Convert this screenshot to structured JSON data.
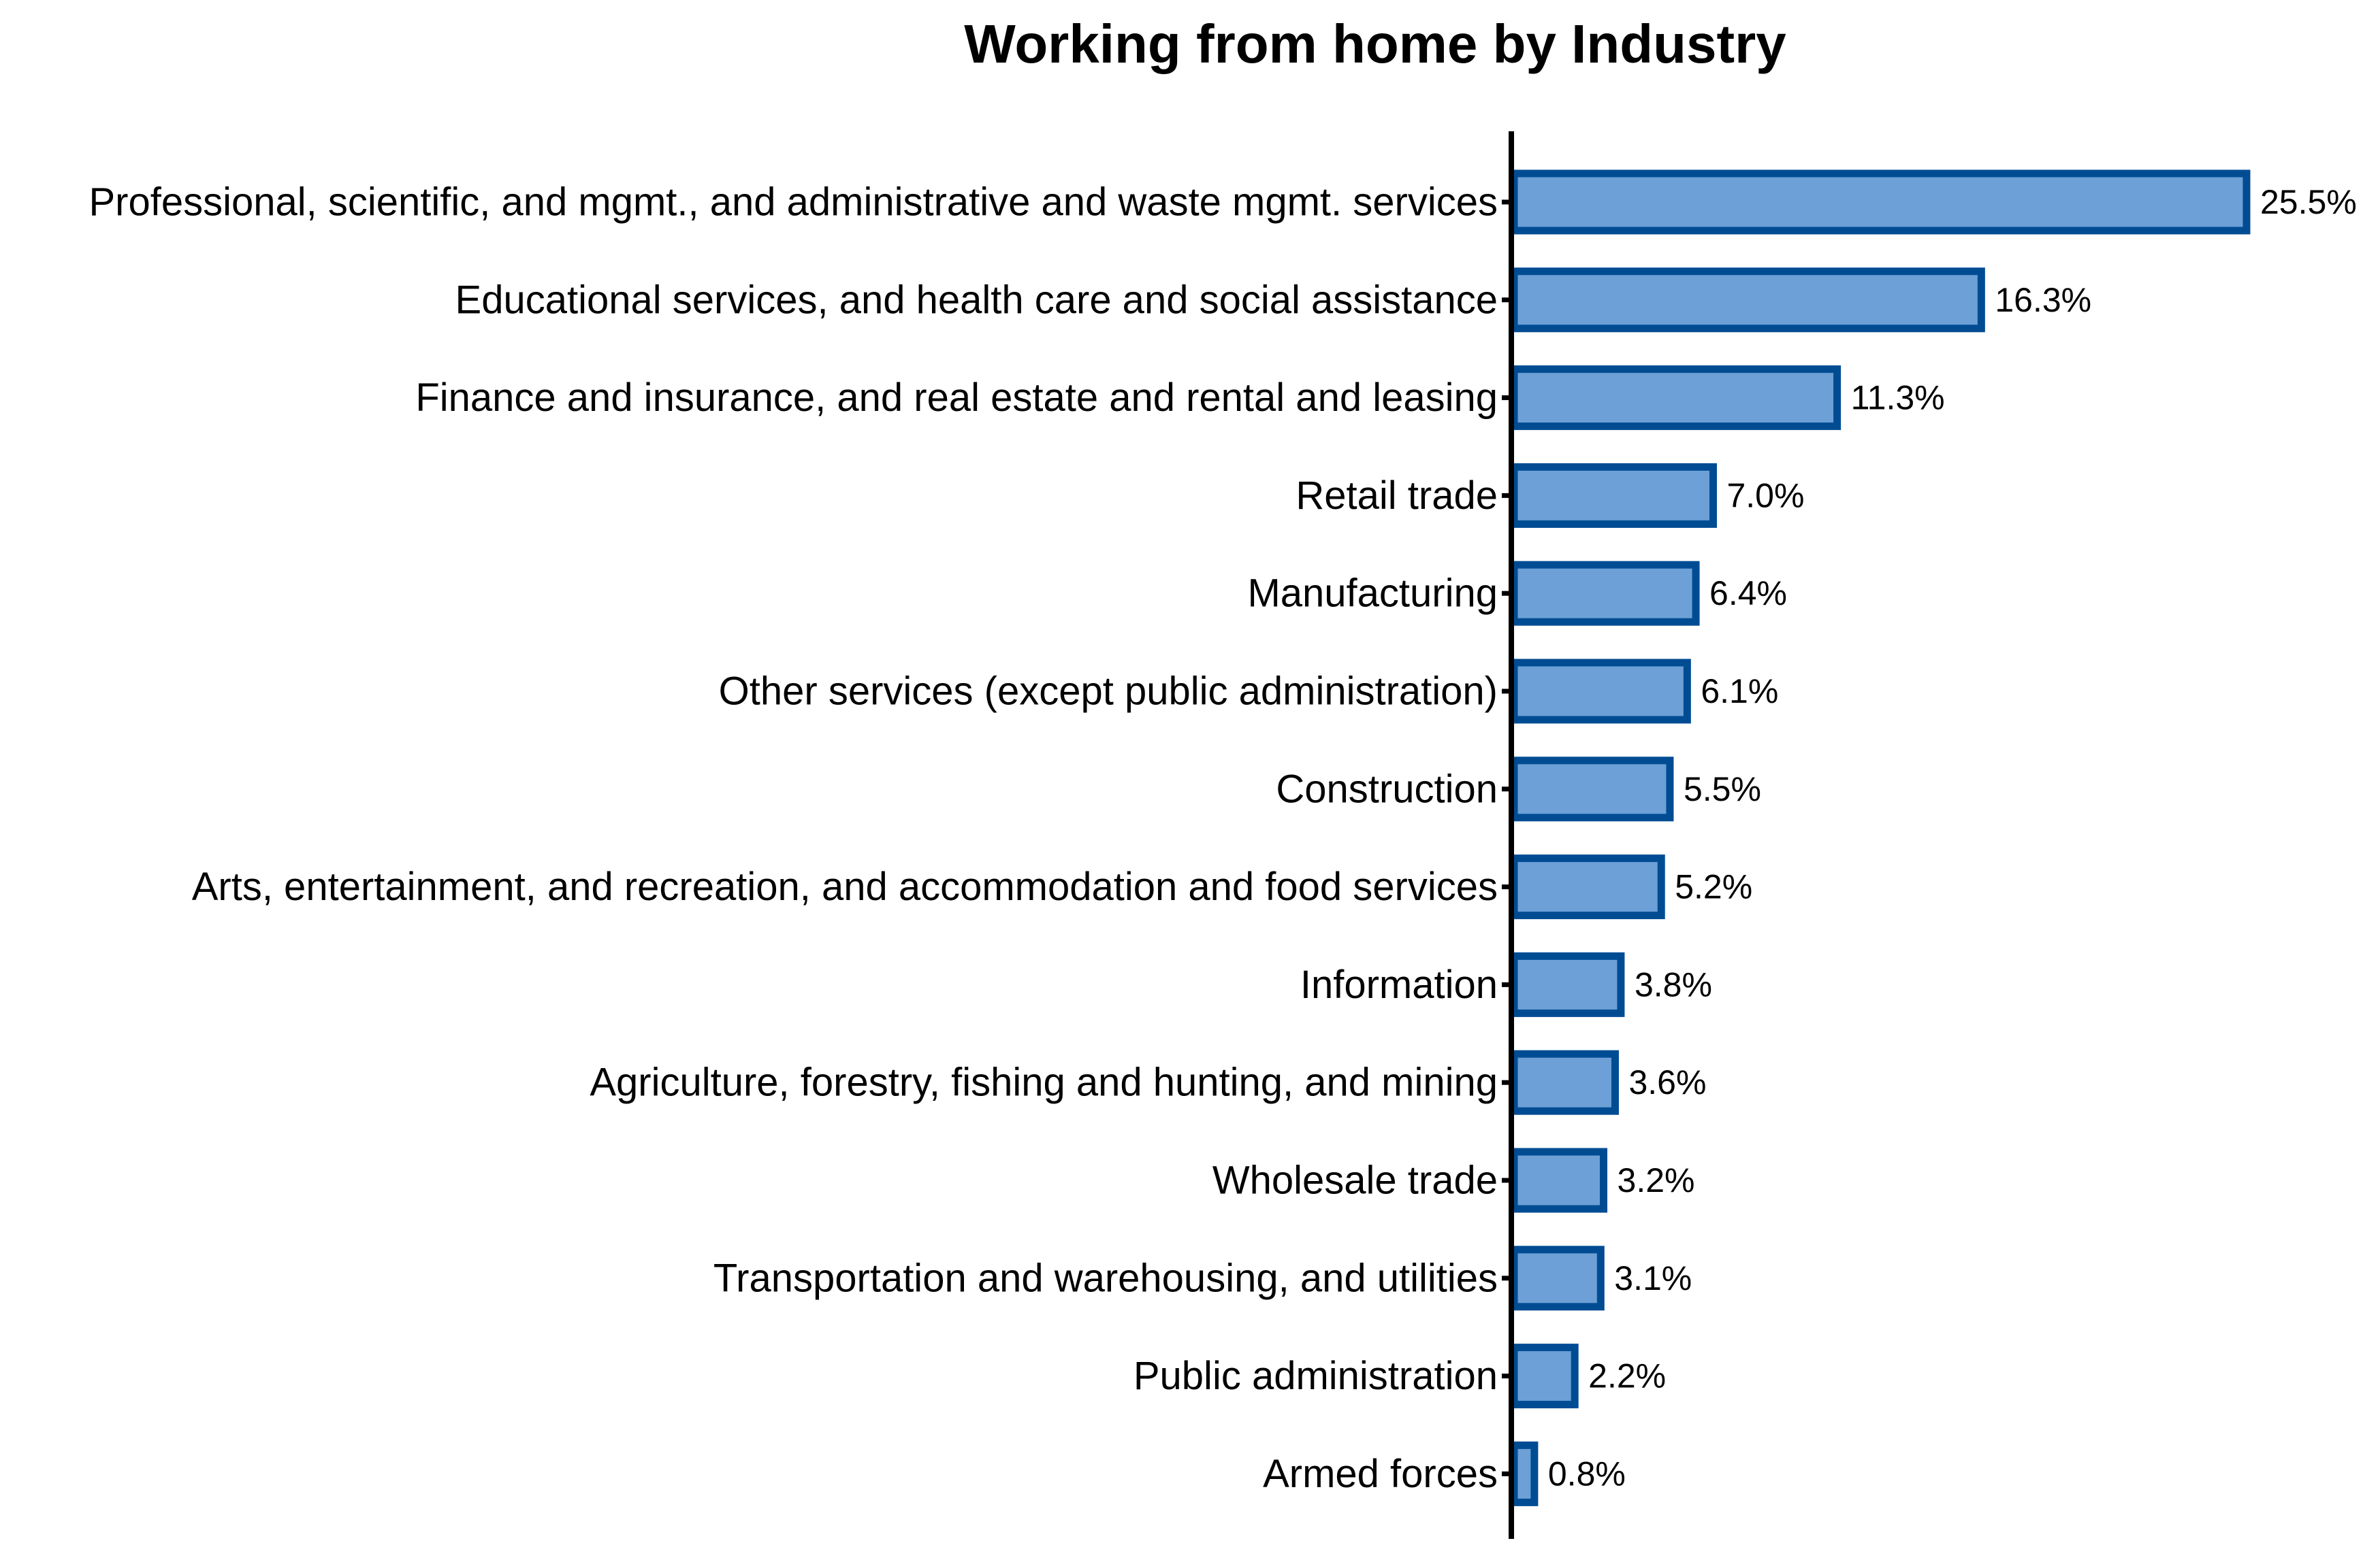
{
  "chart_data": {
    "type": "bar",
    "orientation": "horizontal",
    "title": "Working from home by Industry",
    "xlabel": "",
    "ylabel": "",
    "xlim": [
      0,
      25.5
    ],
    "grid": false,
    "legend": "none",
    "value_suffix": "%",
    "colors": {
      "bar_fill": "#6ca0d6",
      "bar_edge": "#004c93",
      "axis": "#000000",
      "text": "#000000"
    },
    "categories": [
      "Professional, scientific, and mgmt., and administrative and waste mgmt. services",
      "Educational services, and health care and social assistance",
      "Finance and insurance, and real estate and rental and leasing",
      "Retail trade",
      "Manufacturing",
      "Other services (except public administration)",
      "Construction",
      "Arts, entertainment, and recreation, and accommodation and food services",
      "Information",
      "Agriculture, forestry, fishing and hunting, and mining",
      "Wholesale trade",
      "Transportation and warehousing, and utilities",
      "Public administration",
      "Armed forces"
    ],
    "values": [
      25.5,
      16.3,
      11.3,
      7.0,
      6.4,
      6.1,
      5.5,
      5.2,
      3.8,
      3.6,
      3.2,
      3.1,
      2.2,
      0.8
    ],
    "value_labels": [
      "25.5%",
      "16.3%",
      "11.3%",
      "7.0%",
      "6.4%",
      "6.1%",
      "5.5%",
      "5.2%",
      "3.8%",
      "3.6%",
      "3.2%",
      "3.1%",
      "2.2%",
      "0.8%"
    ]
  }
}
